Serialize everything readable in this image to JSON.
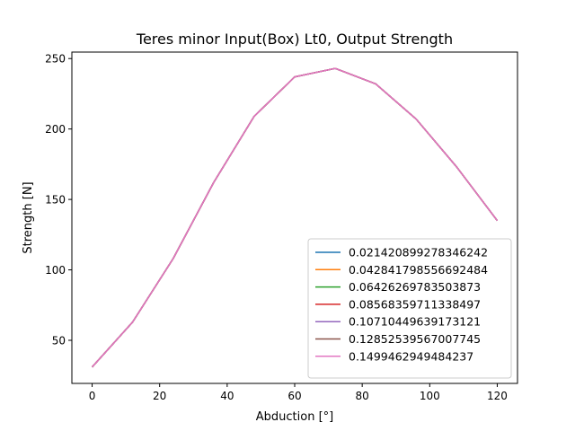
{
  "chart_data": {
    "type": "line",
    "title": "Teres minor Input(Box) Lt0, Output Strength",
    "xlabel": "Abduction [°]",
    "ylabel": "Strength [N]",
    "xlim": [
      -6,
      126
    ],
    "ylim": [
      19.4,
      254.6
    ],
    "xticks": [
      0,
      20,
      40,
      60,
      80,
      100,
      120
    ],
    "yticks": [
      50,
      100,
      150,
      200,
      250
    ],
    "grid": false,
    "legend_position": "lower right",
    "x": [
      0,
      12,
      24,
      36,
      48,
      60,
      72,
      84,
      96,
      108,
      120
    ],
    "series": [
      {
        "name": "0.021420899278346242",
        "color": "#1f77b4",
        "values": [
          31,
          63,
          108,
          162,
          209,
          237,
          243,
          232,
          207,
          173,
          135
        ]
      },
      {
        "name": "0.042841798556692484",
        "color": "#ff7f0e",
        "values": [
          31,
          63,
          108,
          162,
          209,
          237,
          243,
          232,
          207,
          173,
          135
        ]
      },
      {
        "name": "0.06426269783503873",
        "color": "#2ca02c",
        "values": [
          31,
          63,
          108,
          162,
          209,
          237,
          243,
          232,
          207,
          173,
          135
        ]
      },
      {
        "name": "0.08568359711338497",
        "color": "#d62728",
        "values": [
          31,
          63,
          108,
          162,
          209,
          237,
          243,
          232,
          207,
          173,
          135
        ]
      },
      {
        "name": "0.10710449639173121",
        "color": "#9467bd",
        "values": [
          31,
          63,
          108,
          162,
          209,
          237,
          243,
          232,
          207,
          173,
          135
        ]
      },
      {
        "name": "0.12852539567007745",
        "color": "#8c564b",
        "values": [
          31,
          63,
          108,
          162,
          209,
          237,
          243,
          232,
          207,
          173,
          135
        ]
      },
      {
        "name": "0.1499462949484237",
        "color": "#e377c2",
        "values": [
          31,
          63,
          108,
          162,
          209,
          237,
          243,
          232,
          207,
          173,
          135
        ]
      }
    ]
  }
}
